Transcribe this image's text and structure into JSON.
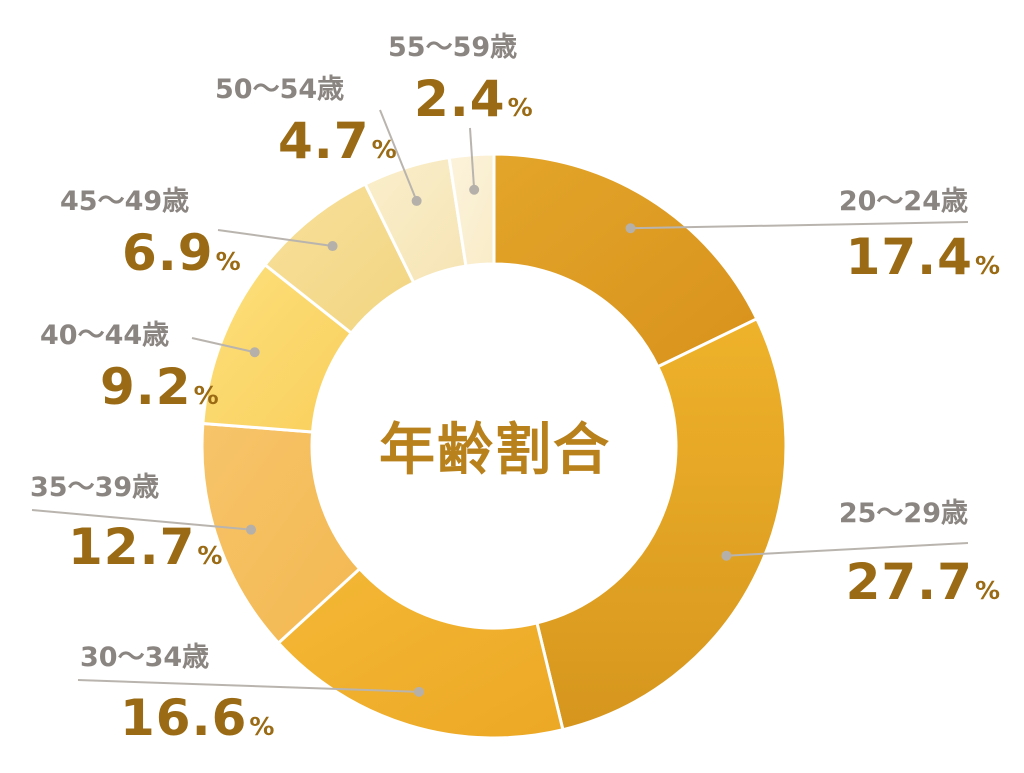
{
  "chart_data": {
    "type": "pie",
    "title": "年齢割合",
    "unit": "%",
    "slices": [
      {
        "label": "20〜24歳",
        "value": 17.4,
        "value_text": "17.4",
        "color": "#dd9a22"
      },
      {
        "label": "25〜29歳",
        "value": 27.7,
        "value_text": "27.7",
        "color": "#e3a420"
      },
      {
        "label": "30〜34歳",
        "value": 16.6,
        "value_text": "16.6",
        "color": "#f2b42a"
      },
      {
        "label": "35〜39歳",
        "value": 12.7,
        "value_text": "12.7",
        "color": "#f5bd5e"
      },
      {
        "label": "40〜44歳",
        "value": 9.2,
        "value_text": "9.2",
        "color": "#fbd768"
      },
      {
        "label": "45〜49歳",
        "value": 6.9,
        "value_text": "6.9",
        "color": "#f5db8c"
      },
      {
        "label": "50〜54歳",
        "value": 4.7,
        "value_text": "4.7",
        "color": "#f8eac0"
      },
      {
        "label": "55〜59歳",
        "value": 2.4,
        "value_text": "2.4",
        "color": "#fbf0d2"
      }
    ]
  }
}
